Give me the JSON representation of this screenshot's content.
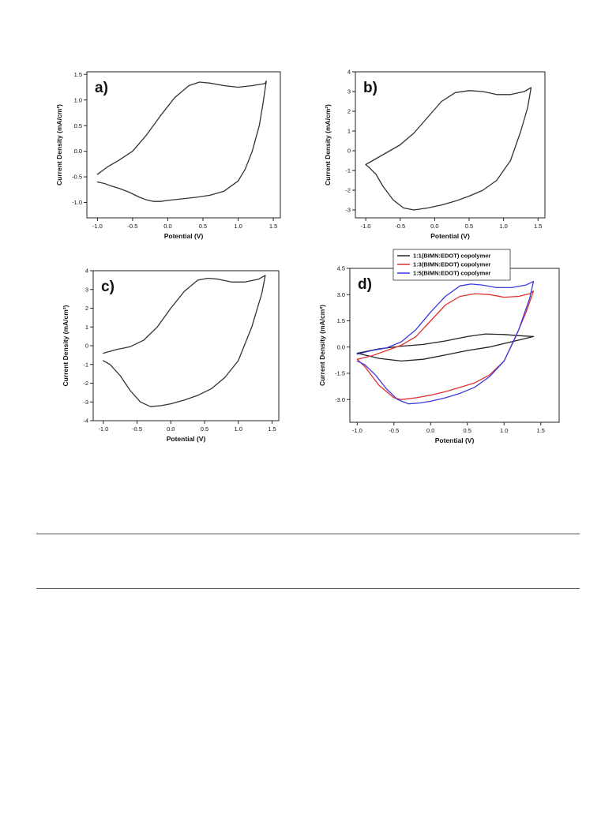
{
  "chart_data": [
    {
      "type": "line",
      "panel_label": "a)",
      "xlabel": "Potential (V)",
      "ylabel": "Current Density (mA/cm²)",
      "xlim": [
        -1.15,
        1.6
      ],
      "ylim": [
        -1.3,
        1.55
      ],
      "xticks": [
        "-1.0",
        "-0.5",
        "0.0",
        "0.5",
        "1.0",
        "1.5"
      ],
      "xtick_values": [
        -1.0,
        -0.5,
        0.0,
        0.5,
        1.0,
        1.5
      ],
      "yticks": [
        "-1.0",
        "-0.5",
        "0.0",
        "0.5",
        "1.0",
        "1.5"
      ],
      "ytick_values": [
        -1.0,
        -0.5,
        0.0,
        0.5,
        1.0,
        1.5
      ],
      "series": [
        {
          "color": "#333333",
          "x": [
            -1.0,
            -0.85,
            -0.7,
            -0.5,
            -0.3,
            -0.1,
            0.1,
            0.3,
            0.45,
            0.6,
            0.8,
            1.0,
            1.2,
            1.38,
            1.4,
            1.35,
            1.3,
            1.2,
            1.1,
            1.0,
            0.8,
            0.6,
            0.4,
            0.2,
            0.0,
            -0.1,
            -0.2,
            -0.3,
            -0.4,
            -0.55,
            -0.7,
            -0.8,
            -0.9,
            -1.0
          ],
          "y": [
            -0.45,
            -0.3,
            -0.18,
            0.0,
            0.32,
            0.7,
            1.05,
            1.28,
            1.35,
            1.33,
            1.28,
            1.25,
            1.28,
            1.32,
            1.37,
            0.9,
            0.5,
            0.0,
            -0.35,
            -0.58,
            -0.78,
            -0.86,
            -0.9,
            -0.93,
            -0.96,
            -0.98,
            -0.98,
            -0.95,
            -0.9,
            -0.8,
            -0.72,
            -0.68,
            -0.63,
            -0.6
          ]
        }
      ]
    },
    {
      "type": "line",
      "panel_label": "b)",
      "xlabel": "Potential (V)",
      "ylabel": "Current Density (mA/cm²)",
      "xlim": [
        -1.15,
        1.6
      ],
      "ylim": [
        -3.4,
        4.0
      ],
      "xticks": [
        "-1.0",
        "-0.5",
        "0.0",
        "0.5",
        "1.0",
        "1.5"
      ],
      "xtick_values": [
        -1.0,
        -0.5,
        0.0,
        0.5,
        1.0,
        1.5
      ],
      "yticks": [
        "-3",
        "-2",
        "-1",
        "0",
        "1",
        "2",
        "3",
        "4"
      ],
      "ytick_values": [
        -3,
        -2,
        -1,
        0,
        1,
        2,
        3,
        4
      ],
      "series": [
        {
          "color": "#333333",
          "x": [
            -1.0,
            -0.9,
            -0.7,
            -0.5,
            -0.3,
            -0.1,
            0.1,
            0.3,
            0.5,
            0.7,
            0.9,
            1.1,
            1.3,
            1.4,
            1.35,
            1.25,
            1.1,
            0.9,
            0.7,
            0.5,
            0.3,
            0.1,
            -0.1,
            -0.3,
            -0.45,
            -0.6,
            -0.75,
            -0.85,
            -0.95,
            -1.0
          ],
          "y": [
            -0.7,
            -0.5,
            -0.1,
            0.3,
            0.9,
            1.7,
            2.5,
            2.95,
            3.05,
            3.0,
            2.85,
            2.85,
            3.0,
            3.2,
            2.2,
            1.0,
            -0.5,
            -1.5,
            -2.0,
            -2.3,
            -2.55,
            -2.75,
            -2.9,
            -3.0,
            -2.9,
            -2.5,
            -1.8,
            -1.2,
            -0.85,
            -0.7
          ]
        }
      ]
    },
    {
      "type": "line",
      "panel_label": "c)",
      "xlabel": "Potential (V)",
      "ylabel": "Current Density (mA/cm²)",
      "xlim": [
        -1.15,
        1.6
      ],
      "ylim": [
        -4.0,
        4.0
      ],
      "xticks": [
        "-1.0",
        "-0.5",
        "0.0",
        "0.5",
        "1.0",
        "1.5"
      ],
      "xtick_values": [
        -1.0,
        -0.5,
        0.0,
        0.5,
        1.0,
        1.5
      ],
      "yticks": [
        "-4",
        "-3",
        "-2",
        "-1",
        "0",
        "1",
        "2",
        "3",
        "4"
      ],
      "ytick_values": [
        -4,
        -3,
        -2,
        -1,
        0,
        1,
        2,
        3,
        4
      ],
      "series": [
        {
          "color": "#333333",
          "x": [
            -1.0,
            -0.8,
            -0.6,
            -0.4,
            -0.2,
            0.0,
            0.2,
            0.4,
            0.55,
            0.7,
            0.9,
            1.1,
            1.3,
            1.4,
            1.35,
            1.2,
            1.0,
            0.8,
            0.6,
            0.4,
            0.2,
            0.0,
            -0.15,
            -0.3,
            -0.45,
            -0.6,
            -0.75,
            -0.9,
            -1.0
          ],
          "y": [
            -0.4,
            -0.2,
            -0.05,
            0.3,
            1.0,
            2.0,
            2.9,
            3.5,
            3.6,
            3.55,
            3.4,
            3.4,
            3.55,
            3.75,
            2.8,
            1.0,
            -0.8,
            -1.7,
            -2.3,
            -2.65,
            -2.9,
            -3.1,
            -3.2,
            -3.25,
            -3.0,
            -2.4,
            -1.6,
            -1.0,
            -0.8
          ]
        }
      ]
    },
    {
      "type": "line",
      "panel_label": "d)",
      "xlabel": "Potential (V)",
      "ylabel": "Current Density (mA/cm²)",
      "xlim": [
        -1.1,
        1.75
      ],
      "ylim": [
        -4.3,
        4.5
      ],
      "xticks": [
        "-1.0",
        "-0.5",
        "0.0",
        "0.5",
        "1.0",
        "1.5"
      ],
      "xtick_values": [
        -1.0,
        -0.5,
        0.0,
        0.5,
        1.0,
        1.5
      ],
      "yticks": [
        "-3.0",
        "-1.5",
        "0.0",
        "1.5",
        "3.0",
        "4.5"
      ],
      "ytick_values": [
        -3.0,
        -1.5,
        0.0,
        1.5,
        3.0,
        4.5
      ],
      "legend_position": "top-center",
      "series": [
        {
          "name": "1:1(BIMN:EDOT) copolymer",
          "color": "#222222",
          "x": [
            -1.0,
            -0.7,
            -0.4,
            -0.1,
            0.2,
            0.5,
            0.75,
            1.0,
            1.2,
            1.4,
            1.4,
            1.2,
            1.0,
            0.8,
            0.5,
            0.2,
            -0.1,
            -0.4,
            -0.7,
            -1.0
          ],
          "y": [
            -0.35,
            -0.1,
            0.05,
            0.15,
            0.35,
            0.6,
            0.75,
            0.72,
            0.65,
            0.6,
            0.6,
            0.4,
            0.2,
            0.0,
            -0.2,
            -0.45,
            -0.7,
            -0.8,
            -0.65,
            -0.35
          ]
        },
        {
          "name": "1:3(BIMN:EDOT) copolymer",
          "color": "#e03030",
          "x": [
            -1.0,
            -0.8,
            -0.6,
            -0.4,
            -0.2,
            0.0,
            0.2,
            0.4,
            0.6,
            0.8,
            1.0,
            1.2,
            1.35,
            1.4,
            1.3,
            1.15,
            1.0,
            0.8,
            0.6,
            0.4,
            0.2,
            0.0,
            -0.2,
            -0.4,
            -0.5,
            -0.7,
            -0.9,
            -1.0
          ],
          "y": [
            -0.7,
            -0.5,
            -0.2,
            0.1,
            0.6,
            1.5,
            2.4,
            2.9,
            3.05,
            3.0,
            2.85,
            2.9,
            3.05,
            3.2,
            2.0,
            0.5,
            -0.8,
            -1.6,
            -2.05,
            -2.3,
            -2.55,
            -2.75,
            -2.9,
            -3.0,
            -2.9,
            -2.2,
            -1.1,
            -0.7
          ]
        },
        {
          "name": "1:5(BIMN:EDOT) copolymer",
          "color": "#3a3ae0",
          "x": [
            -1.0,
            -0.8,
            -0.6,
            -0.4,
            -0.2,
            0.0,
            0.2,
            0.4,
            0.55,
            0.7,
            0.9,
            1.1,
            1.3,
            1.4,
            1.35,
            1.2,
            1.0,
            0.8,
            0.6,
            0.4,
            0.2,
            0.0,
            -0.15,
            -0.3,
            -0.45,
            -0.6,
            -0.75,
            -0.9,
            -1.0
          ],
          "y": [
            -0.4,
            -0.2,
            -0.05,
            0.3,
            1.0,
            2.0,
            2.9,
            3.5,
            3.6,
            3.55,
            3.4,
            3.4,
            3.55,
            3.75,
            2.8,
            1.0,
            -0.8,
            -1.7,
            -2.3,
            -2.65,
            -2.9,
            -3.1,
            -3.2,
            -3.25,
            -3.0,
            -2.4,
            -1.6,
            -1.0,
            -0.8
          ]
        }
      ]
    }
  ]
}
